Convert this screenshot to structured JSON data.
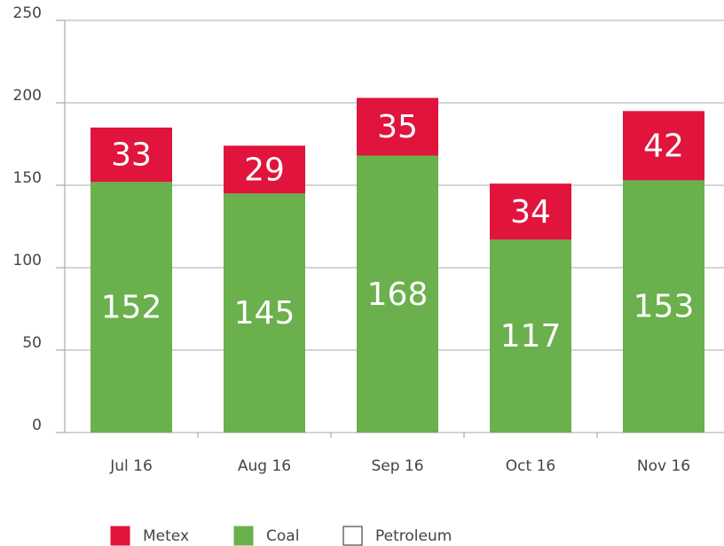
{
  "chart_data": {
    "type": "stacked-bar",
    "categories": [
      "Jul 16",
      "Aug 16",
      "Sep 16",
      "Oct 16",
      "Nov 16"
    ],
    "series": [
      {
        "name": "Coal",
        "color": "#6ab04c",
        "values": [
          152,
          145,
          168,
          117,
          153
        ]
      },
      {
        "name": "Metex",
        "color": "#e0143c",
        "values": [
          33,
          29,
          35,
          34,
          42
        ]
      },
      {
        "name": "Petroleum",
        "color": "#ffffff",
        "values": [
          null,
          null,
          null,
          null,
          null
        ]
      }
    ],
    "legend_order": [
      1,
      0,
      2
    ],
    "ylim": [
      0,
      250
    ],
    "yticks": [
      0,
      50,
      100,
      150,
      200,
      250
    ],
    "grid": true
  }
}
